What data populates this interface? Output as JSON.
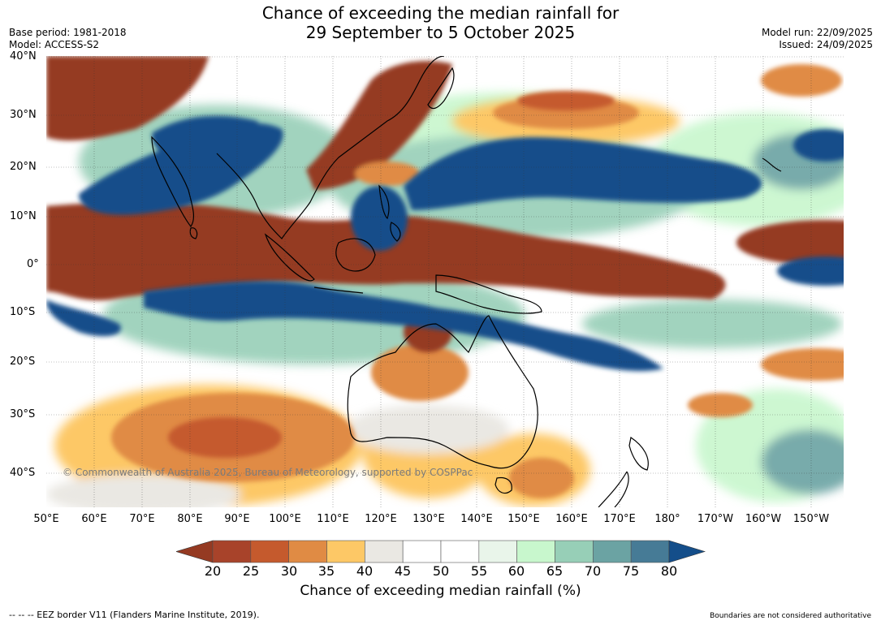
{
  "title_line1": "Chance of exceeding the median rainfall for",
  "title_line2": "29 September to 5 October 2025",
  "base_period": "Base period: 1981-2018",
  "model": "Model: ACCESS-S2",
  "model_run": "Model run: 22/09/2025",
  "issued": "Issued: 24/09/2025",
  "copyright": "© Commonwealth of Australia 2025, Bureau of Meteorology, supported by COSPPac",
  "lat_labels": [
    "40°N",
    "30°N",
    "20°N",
    "10°N",
    "0°",
    "10°S",
    "20°S",
    "30°S",
    "40°S"
  ],
  "lon_labels": [
    "50°E",
    "60°E",
    "70°E",
    "80°E",
    "90°E",
    "100°E",
    "110°E",
    "120°E",
    "130°E",
    "140°E",
    "150°E",
    "160°E",
    "170°E",
    "180°",
    "170°W",
    "160°W",
    "150°W"
  ],
  "colorbar": {
    "ticks": [
      "20",
      "25",
      "30",
      "35",
      "40",
      "45",
      "50",
      "55",
      "60",
      "65",
      "70",
      "75",
      "80"
    ],
    "label": "Chance of exceeding median rainfall (%)",
    "colors": [
      "#a8432a",
      "#c55a2d",
      "#e08b44",
      "#fdc866",
      "#eae8e3",
      "#ffffff",
      "#ffffff",
      "#e9f5ea",
      "#c8f7cd",
      "#97cfb7",
      "#6ba3a3",
      "#467b96"
    ],
    "under_color": "#953a22",
    "over_color": "#144e8a"
  },
  "footer_left": "--  --  -- EEZ border V11 (Flanders Marine Institute, 2019).",
  "footer_right": "Boundaries are not considered authoritative"
}
